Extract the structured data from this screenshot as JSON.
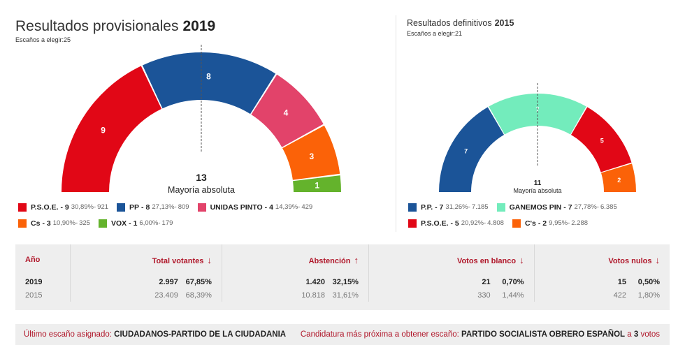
{
  "current": {
    "title": "Resultados provisionales",
    "year": "2019",
    "seats_label": "Escaños a elegir:25",
    "majority_seats": "13",
    "majority_label": "Mayoría absoluta",
    "parties": [
      {
        "name": "P.S.O.E.",
        "seats": 9,
        "seats_text": "- 9",
        "pct": "30,89%",
        "votes": "921",
        "color": "#e10716"
      },
      {
        "name": "PP",
        "seats": 8,
        "seats_text": "- 8",
        "pct": "27,13%",
        "votes": "809",
        "color": "#1b5498"
      },
      {
        "name": "UNIDAS PINTO",
        "seats": 4,
        "seats_text": "- 4",
        "pct": "14,39%",
        "votes": "429",
        "color": "#e2436a"
      },
      {
        "name": "Cs",
        "seats": 3,
        "seats_text": "- 3",
        "pct": "10,90%",
        "votes": "325",
        "color": "#fb6208"
      },
      {
        "name": "VOX",
        "seats": 1,
        "seats_text": "- 1",
        "pct": "6,00%",
        "votes": "179",
        "color": "#64b32c"
      }
    ]
  },
  "previous": {
    "title": "Resultados definitivos",
    "year": "2015",
    "seats_label": "Escaños a elegir:21",
    "majority_seats": "11",
    "majority_label": "Mayoría absoluta",
    "parties": [
      {
        "name": "P.P.",
        "seats": 7,
        "seats_text": "- 7",
        "pct": "31,26%",
        "votes": "7.185",
        "color": "#1b5498"
      },
      {
        "name": "GANEMOS PIN",
        "seats": 7,
        "seats_text": "- 7",
        "pct": "27,78%",
        "votes": "6.385",
        "color": "#73ecbc"
      },
      {
        "name": "P.S.O.E.",
        "seats": 5,
        "seats_text": "- 5",
        "pct": "20,92%",
        "votes": "4.808",
        "color": "#e10716"
      },
      {
        "name": "C's",
        "seats": 2,
        "seats_text": "- 2",
        "pct": "9,95%",
        "votes": "2.288",
        "color": "#fb6208"
      }
    ]
  },
  "chart_data": [
    {
      "type": "pie",
      "title": "Resultados provisionales 2019",
      "subtitle": "Escaños a elegir:25",
      "categories": [
        "P.S.O.E.",
        "PP",
        "UNIDAS PINTO",
        "Cs",
        "VOX"
      ],
      "values": [
        9,
        8,
        4,
        3,
        1
      ],
      "annotations": [
        "13",
        "Mayoría absoluta"
      ]
    },
    {
      "type": "pie",
      "title": "Resultados definitivos 2015",
      "subtitle": "Escaños a elegir:21",
      "categories": [
        "P.P.",
        "GANEMOS PIN",
        "P.S.O.E.",
        "C's"
      ],
      "values": [
        7,
        7,
        5,
        2
      ],
      "annotations": [
        "11",
        "Mayoría absoluta"
      ]
    }
  ],
  "table": {
    "headers": {
      "year": "Año",
      "total": "Total votantes",
      "total_arrow": "↓",
      "abst": "Abstención",
      "abst_arrow": "↑",
      "blank": "Votos en blanco",
      "blank_arrow": "↓",
      "null": "Votos nulos",
      "null_arrow": "↓"
    },
    "rows": [
      {
        "year": "2019",
        "total": "2.997",
        "total_pct": "67,85%",
        "abst": "1.420",
        "abst_pct": "32,15%",
        "blank": "21",
        "blank_pct": "0,70%",
        "null": "15",
        "null_pct": "0,50%"
      },
      {
        "year": "2015",
        "total": "23.409",
        "total_pct": "68,39%",
        "abst": "10.818",
        "abst_pct": "31,61%",
        "blank": "330",
        "blank_pct": "1,44%",
        "null": "422",
        "null_pct": "1,80%"
      }
    ]
  },
  "footer": {
    "last_seat_label": "Último escaño asignado:",
    "last_seat_value": "CIUDADANOS-PARTIDO DE LA CIUDADANIA",
    "next_label": "Candidatura más próxima a obtener escaño:",
    "next_value": "PARTIDO SOCIALISTA OBRERO ESPAÑOL",
    "next_mid": "a",
    "next_votes": "3",
    "next_suffix": "votos"
  }
}
